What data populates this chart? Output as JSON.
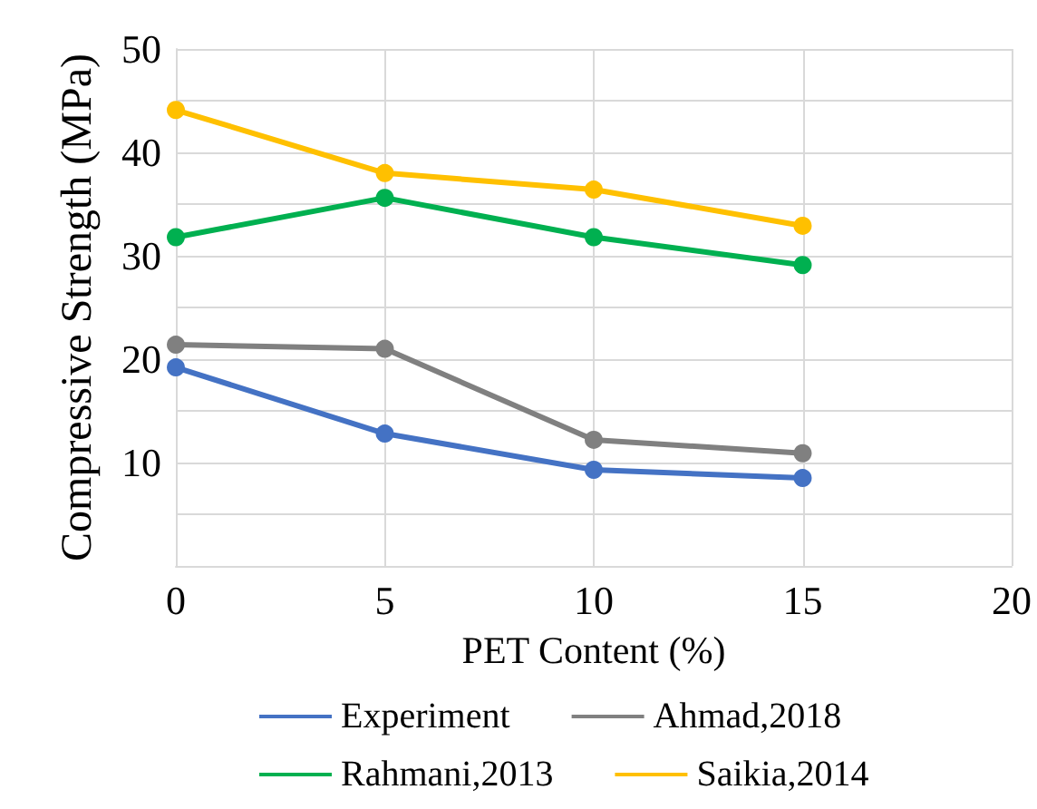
{
  "chart_data": {
    "type": "line",
    "xlabel": "PET Content (%)",
    "ylabel": "Compressive Strength (MPa)",
    "x": [
      0,
      5,
      10,
      15
    ],
    "series": [
      {
        "name": "Experiment",
        "color": "#4472c4",
        "values": [
          19.2,
          12.8,
          9.3,
          8.5
        ]
      },
      {
        "name": "Ahmad,2018",
        "color": "#808080",
        "values": [
          21.4,
          21.0,
          12.2,
          10.9
        ]
      },
      {
        "name": "Rahmani,2013",
        "color": "#00b050",
        "values": [
          31.8,
          35.6,
          31.8,
          29.1
        ]
      },
      {
        "name": "Saikia,2014",
        "color": "#ffc000",
        "values": [
          44.1,
          38.0,
          36.4,
          32.9
        ]
      }
    ],
    "xlim": [
      0,
      20
    ],
    "xticks": [
      0,
      5,
      10,
      15,
      20
    ],
    "ylim": [
      0,
      50
    ],
    "yticks": [
      {
        "value": 0,
        "label": null
      },
      {
        "value": 5,
        "label": null
      },
      10,
      {
        "value": 15,
        "label": null
      },
      20,
      {
        "value": 25,
        "label": null
      },
      30,
      {
        "value": 35,
        "label": null
      },
      40,
      {
        "value": 45,
        "label": null
      },
      50
    ],
    "grid": true,
    "legend": "bottom",
    "marker": "circle",
    "line_style": "solid"
  }
}
